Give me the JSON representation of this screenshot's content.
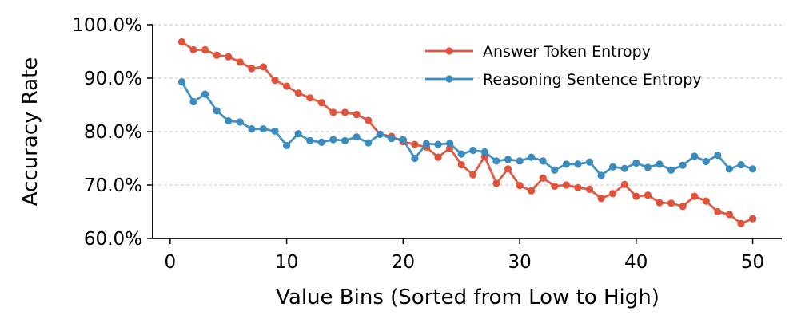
{
  "chart_data": {
    "type": "line",
    "xlabel": "Value Bins (Sorted from Low to High)",
    "ylabel": "Accuracy Rate",
    "xlim": [
      -1.5,
      52.5
    ],
    "ylim": [
      60,
      100
    ],
    "xticks": [
      0,
      10,
      20,
      30,
      40,
      50
    ],
    "xtick_labels": [
      "0",
      "10",
      "20",
      "30",
      "40",
      "50"
    ],
    "yticks": [
      60,
      70,
      80,
      90,
      100
    ],
    "ytick_labels": [
      "60.0%",
      "70.0%",
      "80.0%",
      "90.0%",
      "100.0%"
    ],
    "grid": "horizontal dashed",
    "legend_position": "top-right",
    "x": [
      1,
      2,
      3,
      4,
      5,
      6,
      7,
      8,
      9,
      10,
      11,
      12,
      13,
      14,
      15,
      16,
      17,
      18,
      19,
      20,
      21,
      22,
      23,
      24,
      25,
      26,
      27,
      28,
      29,
      30,
      31,
      32,
      33,
      34,
      35,
      36,
      37,
      38,
      39,
      40,
      41,
      42,
      43,
      44,
      45,
      46,
      47,
      48,
      49,
      50
    ],
    "series": [
      {
        "name": "Answer Token Entropy",
        "color": "#e0533b",
        "values": [
          96.8,
          95.3,
          95.3,
          94.3,
          94.0,
          93.0,
          91.8,
          92.1,
          89.6,
          88.5,
          87.2,
          86.3,
          85.4,
          83.6,
          83.6,
          83.2,
          82.1,
          79.5,
          79.1,
          78.1,
          77.6,
          77.1,
          75.2,
          76.9,
          73.8,
          71.9,
          75.3,
          70.3,
          73.0,
          69.9,
          68.9,
          71.3,
          69.8,
          70.0,
          69.5,
          69.2,
          67.5,
          68.4,
          70.1,
          67.9,
          68.1,
          66.7,
          66.6,
          66.0,
          67.9,
          67.0,
          65.0,
          64.5,
          62.8,
          63.7
        ]
      },
      {
        "name": "Reasoning Sentence Entropy",
        "color": "#3a8bbf",
        "values": [
          89.3,
          85.6,
          87.0,
          83.9,
          82.0,
          81.8,
          80.5,
          80.5,
          80.1,
          77.4,
          79.6,
          78.3,
          78.0,
          78.5,
          78.3,
          79.0,
          77.9,
          79.5,
          78.7,
          78.5,
          75.0,
          77.7,
          77.6,
          77.8,
          75.8,
          76.5,
          76.2,
          74.5,
          74.8,
          74.5,
          75.2,
          74.5,
          72.8,
          73.9,
          73.9,
          74.3,
          71.8,
          73.4,
          73.1,
          74.1,
          73.3,
          73.9,
          72.8,
          73.7,
          75.4,
          74.4,
          75.6,
          73.0,
          73.8,
          73.0
        ]
      }
    ]
  }
}
